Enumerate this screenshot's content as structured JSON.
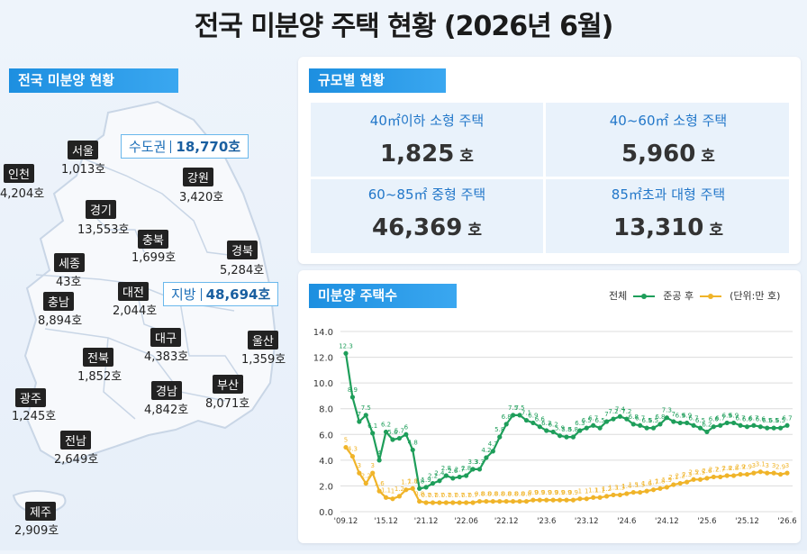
{
  "title": "전국 미분양 주택 현황 (2026년 6월)",
  "map_section": {
    "label": "전국 미분양 현황",
    "capital_label": "수도권",
    "capital_value": "18,770호",
    "local_label": "지방",
    "local_value": "48,694호",
    "regions": [
      {
        "name": "서울",
        "value": "1,013호"
      },
      {
        "name": "인천",
        "value": "4,204호"
      },
      {
        "name": "경기",
        "value": "13,553호"
      },
      {
        "name": "강원",
        "value": "3,420호"
      },
      {
        "name": "충북",
        "value": "1,699호"
      },
      {
        "name": "경북",
        "value": "5,284호"
      },
      {
        "name": "세종",
        "value": "43호"
      },
      {
        "name": "충남",
        "value": "8,894호"
      },
      {
        "name": "대전",
        "value": "2,044호"
      },
      {
        "name": "대구",
        "value": "4,383호"
      },
      {
        "name": "울산",
        "value": "1,359호"
      },
      {
        "name": "전북",
        "value": "1,852호"
      },
      {
        "name": "광주",
        "value": "1,245호"
      },
      {
        "name": "경남",
        "value": "4,842호"
      },
      {
        "name": "부산",
        "value": "8,071호"
      },
      {
        "name": "전남",
        "value": "2,649호"
      },
      {
        "name": "제주",
        "value": "2,909호"
      }
    ]
  },
  "size_section": {
    "label": "규모별 현황",
    "unit": "호",
    "items": [
      {
        "label": "40㎡이하 소형 주택",
        "value": "1,825"
      },
      {
        "label": "40~60㎡ 소형 주택",
        "value": "5,960"
      },
      {
        "label": "60~85㎡ 중형 주택",
        "value": "46,369"
      },
      {
        "label": "85㎡초과 대형 주택",
        "value": "13,310"
      }
    ]
  },
  "chart_section": {
    "label": "미분양 주택수",
    "legend_total": "전체",
    "legend_completed": "준공 후",
    "legend_unit": "(단위:만 호)"
  },
  "colors": {
    "total": "#1e9e5a",
    "completed": "#f0b429",
    "accent": "#1d8fe0"
  },
  "chart_data": {
    "type": "line",
    "title": "미분양 주택수",
    "ylabel": "",
    "xlabel": "",
    "ylim": [
      0,
      14
    ],
    "yticks": [
      "0.0",
      "2.0",
      "4.0",
      "6.0",
      "8.0",
      "10.0",
      "12.0",
      "14.0"
    ],
    "x_tick_labels": [
      "'09.12",
      "'15.12",
      "'21.12",
      "'22.06",
      "'22.12",
      "'23.6",
      "'23.12",
      "'24.6",
      "'24.12",
      "'25.6",
      "'25.12",
      "'26.6"
    ],
    "x_tick_positions": [
      0,
      6,
      12,
      18,
      24,
      30,
      36,
      42,
      48,
      54,
      60,
      66
    ],
    "grid": true,
    "legend": "top-right",
    "series": [
      {
        "name": "전체",
        "values": [
          12.3,
          8.9,
          7.0,
          7.5,
          6.1,
          4.0,
          6.2,
          5.6,
          5.7,
          6.0,
          4.8,
          1.8,
          1.9,
          2.2,
          2.4,
          2.8,
          2.6,
          2.7,
          2.8,
          3.3,
          3.3,
          4.2,
          4.7,
          5.8,
          6.8,
          7.5,
          7.5,
          7.1,
          6.9,
          6.6,
          6.3,
          6.2,
          5.9,
          5.8,
          5.8,
          6.3,
          6.5,
          6.7,
          6.5,
          7.0,
          7.2,
          7.4,
          7.2,
          6.8,
          6.7,
          6.5,
          6.5,
          6.8,
          7.3,
          7.0,
          6.9,
          6.9,
          6.7,
          6.5,
          6.2,
          6.6,
          6.7,
          6.9,
          6.9,
          6.7,
          6.6,
          6.7,
          6.6,
          6.5,
          6.5,
          6.5,
          6.7
        ],
        "color": "#1e9e5a"
      },
      {
        "name": "준공 후",
        "values": [
          5.0,
          4.3,
          3.0,
          2.2,
          3.0,
          1.6,
          1.1,
          1.0,
          1.2,
          1.7,
          1.8,
          0.8,
          0.7,
          0.7,
          0.7,
          0.7,
          0.7,
          0.7,
          0.7,
          0.7,
          0.8,
          0.8,
          0.8,
          0.8,
          0.8,
          0.8,
          0.8,
          0.8,
          0.9,
          0.9,
          0.9,
          0.9,
          0.9,
          0.9,
          0.9,
          1.0,
          1.0,
          1.1,
          1.1,
          1.2,
          1.3,
          1.3,
          1.4,
          1.5,
          1.5,
          1.6,
          1.7,
          1.8,
          1.9,
          2.1,
          2.2,
          2.3,
          2.5,
          2.5,
          2.6,
          2.7,
          2.7,
          2.8,
          2.8,
          2.9,
          2.9,
          3.0,
          3.1,
          3.0,
          3.0,
          2.9,
          3.0
        ],
        "color": "#f0b429"
      }
    ]
  }
}
